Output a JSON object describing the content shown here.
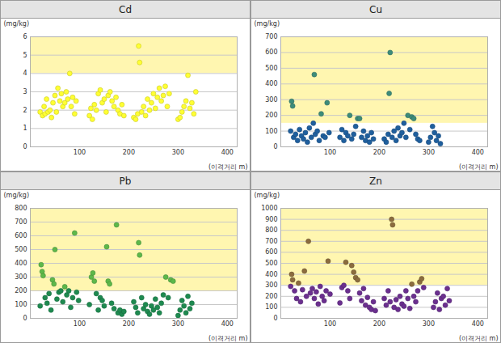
{
  "chart_data": [
    {
      "type": "scatter",
      "title": "Cd",
      "ylabel": "(mg/kg)",
      "xlabel": "(이격거리 m)",
      "xlim": [
        0,
        420
      ],
      "xticks": [
        100,
        200,
        300,
        400
      ],
      "ylim": [
        0,
        6
      ],
      "yticks": [
        0,
        1,
        2,
        3,
        4,
        5,
        6
      ],
      "grid": true,
      "shaded_range": [
        4,
        6
      ],
      "color": "#ffff33",
      "x": [
        20,
        25,
        28,
        30,
        33,
        36,
        40,
        43,
        46,
        50,
        53,
        56,
        60,
        63,
        66,
        70,
        73,
        76,
        80,
        83,
        86,
        90,
        93,
        120,
        123,
        126,
        130,
        134,
        138,
        142,
        146,
        150,
        154,
        158,
        162,
        166,
        170,
        174,
        178,
        182,
        186,
        190,
        210,
        214,
        218,
        220,
        222,
        226,
        230,
        234,
        238,
        242,
        246,
        250,
        254,
        258,
        262,
        266,
        270,
        274,
        278,
        282,
        300,
        304,
        308,
        312,
        316,
        320,
        324,
        328,
        332,
        336
      ],
      "values": [
        1.9,
        1.7,
        2.2,
        1.8,
        2.6,
        1.9,
        2.0,
        1.6,
        2.4,
        2.8,
        1.9,
        3.2,
        2.5,
        2.9,
        2.2,
        2.4,
        3.0,
        2.6,
        4.0,
        2.2,
        2.7,
        1.8,
        2.5,
        1.7,
        2.1,
        1.5,
        2.3,
        2.0,
        2.9,
        3.1,
        2.4,
        2.6,
        1.9,
        2.8,
        3.0,
        2.5,
        2.2,
        2.7,
        2.0,
        1.8,
        2.3,
        1.7,
        1.6,
        1.5,
        1.8,
        5.5,
        4.6,
        1.9,
        2.2,
        1.7,
        2.6,
        2.0,
        2.4,
        2.9,
        2.1,
        2.7,
        3.2,
        2.5,
        2.8,
        3.3,
        2.2,
        2.9,
        1.5,
        1.6,
        1.9,
        2.2,
        2.5,
        3.9,
        2.1,
        2.4,
        1.8,
        3.0
      ]
    },
    {
      "type": "scatter",
      "title": "Cu",
      "ylabel": "(mg/kg)",
      "xlabel": "(이격거리 m)",
      "xlim": [
        0,
        420
      ],
      "xticks": [
        100,
        200,
        300,
        400
      ],
      "ylim": [
        0,
        700
      ],
      "yticks": [
        0,
        100,
        200,
        300,
        400,
        500,
        600,
        700
      ],
      "grid": true,
      "shaded_range": [
        150,
        700
      ],
      "x": [
        20,
        22,
        24,
        26,
        30,
        34,
        38,
        42,
        46,
        50,
        54,
        58,
        62,
        66,
        68,
        70,
        74,
        78,
        82,
        86,
        90,
        94,
        98,
        120,
        124,
        128,
        132,
        136,
        140,
        144,
        148,
        152,
        156,
        160,
        164,
        168,
        172,
        176,
        180,
        184,
        188,
        210,
        214,
        218,
        220,
        222,
        226,
        230,
        234,
        238,
        242,
        246,
        250,
        254,
        258,
        262,
        266,
        270,
        274,
        278,
        282,
        300,
        304,
        308,
        312,
        316,
        320,
        324
      ],
      "values": [
        100,
        290,
        260,
        60,
        80,
        40,
        110,
        70,
        50,
        90,
        30,
        120,
        60,
        150,
        460,
        80,
        100,
        40,
        210,
        70,
        60,
        280,
        90,
        60,
        110,
        40,
        90,
        70,
        200,
        50,
        80,
        130,
        180,
        180,
        60,
        100,
        40,
        70,
        30,
        90,
        50,
        50,
        30,
        80,
        340,
        600,
        60,
        100,
        40,
        120,
        70,
        90,
        150,
        60,
        200,
        110,
        190,
        180,
        80,
        50,
        40,
        30,
        60,
        130,
        90,
        40,
        70,
        20
      ],
      "colors": [
        "#1f5f9e",
        "#3d8c7a",
        "#3d8c7a",
        "#1f5f9e",
        "#1f5f9e",
        "#1f5f9e",
        "#1f5f9e",
        "#1f5f9e",
        "#1f5f9e",
        "#1f5f9e",
        "#1f5f9e",
        "#1f5f9e",
        "#1f5f9e",
        "#1f5f9e",
        "#3d8c7a",
        "#1f5f9e",
        "#1f5f9e",
        "#1f5f9e",
        "#3d8c7a",
        "#1f5f9e",
        "#1f5f9e",
        "#3d8c7a",
        "#1f5f9e",
        "#1f5f9e",
        "#1f5f9e",
        "#1f5f9e",
        "#1f5f9e",
        "#1f5f9e",
        "#3d8c7a",
        "#1f5f9e",
        "#1f5f9e",
        "#1f5f9e",
        "#3d8c7a",
        "#3d8c7a",
        "#1f5f9e",
        "#1f5f9e",
        "#1f5f9e",
        "#1f5f9e",
        "#1f5f9e",
        "#1f5f9e",
        "#1f5f9e",
        "#1f5f9e",
        "#1f5f9e",
        "#1f5f9e",
        "#3d8c7a",
        "#3d8c7a",
        "#1f5f9e",
        "#1f5f9e",
        "#1f5f9e",
        "#1f5f9e",
        "#1f5f9e",
        "#1f5f9e",
        "#1f5f9e",
        "#1f5f9e",
        "#3d8c7a",
        "#1f5f9e",
        "#3d8c7a",
        "#3d8c7a",
        "#1f5f9e",
        "#1f5f9e",
        "#1f5f9e",
        "#1f5f9e",
        "#1f5f9e",
        "#1f5f9e",
        "#1f5f9e",
        "#1f5f9e",
        "#1f5f9e",
        "#1f5f9e"
      ]
    },
    {
      "type": "scatter",
      "title": "Pb",
      "ylabel": "(mg/kg)",
      "xlabel": "(이격거리 m)",
      "xlim": [
        0,
        420
      ],
      "xticks": [
        100,
        200,
        300,
        400
      ],
      "ylim": [
        0,
        800
      ],
      "yticks": [
        0,
        100,
        200,
        300,
        400,
        500,
        600,
        700,
        800
      ],
      "grid": true,
      "shaded_range": [
        200,
        800
      ],
      "x": [
        20,
        22,
        24,
        26,
        30,
        34,
        38,
        42,
        45,
        48,
        50,
        54,
        58,
        62,
        66,
        70,
        74,
        78,
        82,
        86,
        90,
        94,
        98,
        120,
        124,
        127,
        130,
        134,
        138,
        142,
        146,
        150,
        155,
        158,
        161,
        165,
        170,
        175,
        178,
        182,
        186,
        190,
        210,
        214,
        218,
        220,
        222,
        226,
        230,
        234,
        238,
        242,
        246,
        250,
        254,
        258,
        262,
        266,
        270,
        275,
        280,
        285,
        290,
        300,
        304,
        308,
        312,
        316,
        320,
        324,
        328
      ],
      "values": [
        90,
        390,
        340,
        310,
        150,
        110,
        180,
        60,
        280,
        250,
        500,
        140,
        190,
        200,
        120,
        230,
        170,
        200,
        80,
        150,
        620,
        190,
        130,
        100,
        300,
        330,
        270,
        180,
        60,
        150,
        130,
        90,
        520,
        270,
        250,
        110,
        70,
        680,
        40,
        60,
        30,
        50,
        120,
        80,
        40,
        550,
        460,
        150,
        70,
        100,
        50,
        30,
        90,
        60,
        140,
        80,
        40,
        110,
        170,
        300,
        150,
        280,
        270,
        20,
        60,
        130,
        90,
        40,
        160,
        70,
        110
      ],
      "colors": [
        "#1e8a50",
        "#5db84a",
        "#5db84a",
        "#5db84a",
        "#1e8a50",
        "#1e8a50",
        "#1e8a50",
        "#1e8a50",
        "#5db84a",
        "#5db84a",
        "#5db84a",
        "#1e8a50",
        "#1e8a50",
        "#1e8a50",
        "#1e8a50",
        "#5db84a",
        "#1e8a50",
        "#1e8a50",
        "#1e8a50",
        "#1e8a50",
        "#5db84a",
        "#1e8a50",
        "#1e8a50",
        "#1e8a50",
        "#5db84a",
        "#5db84a",
        "#5db84a",
        "#1e8a50",
        "#1e8a50",
        "#1e8a50",
        "#1e8a50",
        "#1e8a50",
        "#5db84a",
        "#5db84a",
        "#5db84a",
        "#1e8a50",
        "#1e8a50",
        "#5db84a",
        "#1e8a50",
        "#1e8a50",
        "#1e8a50",
        "#1e8a50",
        "#1e8a50",
        "#1e8a50",
        "#1e8a50",
        "#5db84a",
        "#5db84a",
        "#1e8a50",
        "#1e8a50",
        "#1e8a50",
        "#1e8a50",
        "#1e8a50",
        "#1e8a50",
        "#1e8a50",
        "#1e8a50",
        "#1e8a50",
        "#1e8a50",
        "#1e8a50",
        "#1e8a50",
        "#5db84a",
        "#1e8a50",
        "#5db84a",
        "#5db84a",
        "#1e8a50",
        "#1e8a50",
        "#1e8a50",
        "#1e8a50",
        "#1e8a50",
        "#1e8a50",
        "#1e8a50",
        "#1e8a50"
      ]
    },
    {
      "type": "scatter",
      "title": "Zn",
      "ylabel": "(mg/kg)",
      "xlabel": "(이격거리 m)",
      "xlim": [
        0,
        420
      ],
      "xticks": [
        100,
        200,
        300,
        400
      ],
      "ylim": [
        0,
        1000
      ],
      "yticks": [
        0,
        100,
        200,
        300,
        400,
        500,
        600,
        700,
        800,
        900,
        1000
      ],
      "grid": true,
      "shaded_range": [
        300,
        1000
      ],
      "x": [
        20,
        22,
        24,
        28,
        32,
        36,
        40,
        44,
        48,
        52,
        56,
        60,
        64,
        68,
        72,
        76,
        80,
        84,
        88,
        92,
        96,
        100,
        120,
        124,
        128,
        132,
        136,
        140,
        144,
        148,
        152,
        156,
        160,
        164,
        168,
        172,
        176,
        180,
        184,
        188,
        192,
        210,
        214,
        218,
        222,
        225,
        227,
        230,
        234,
        238,
        242,
        246,
        250,
        254,
        258,
        262,
        266,
        270,
        274,
        278,
        282,
        286,
        290,
        310,
        314,
        318,
        322,
        326,
        330,
        334,
        338,
        342
      ],
      "values": [
        290,
        400,
        350,
        250,
        180,
        320,
        150,
        260,
        430,
        200,
        700,
        230,
        270,
        180,
        240,
        130,
        290,
        200,
        160,
        250,
        520,
        220,
        140,
        280,
        300,
        510,
        250,
        180,
        480,
        420,
        370,
        350,
        230,
        160,
        270,
        120,
        190,
        100,
        80,
        150,
        70,
        180,
        120,
        250,
        150,
        900,
        850,
        100,
        170,
        80,
        200,
        130,
        110,
        250,
        180,
        90,
        310,
        200,
        150,
        250,
        330,
        360,
        280,
        100,
        150,
        230,
        80,
        180,
        200,
        120,
        270,
        160
      ],
      "colors": [
        "#6b2f8f",
        "#8b6c3e",
        "#8b6c3e",
        "#6b2f8f",
        "#6b2f8f",
        "#8b6c3e",
        "#6b2f8f",
        "#6b2f8f",
        "#8b6c3e",
        "#6b2f8f",
        "#8b6c3e",
        "#6b2f8f",
        "#6b2f8f",
        "#6b2f8f",
        "#6b2f8f",
        "#6b2f8f",
        "#6b2f8f",
        "#6b2f8f",
        "#6b2f8f",
        "#6b2f8f",
        "#8b6c3e",
        "#6b2f8f",
        "#6b2f8f",
        "#6b2f8f",
        "#6b2f8f",
        "#8b6c3e",
        "#6b2f8f",
        "#6b2f8f",
        "#8b6c3e",
        "#8b6c3e",
        "#8b6c3e",
        "#8b6c3e",
        "#6b2f8f",
        "#6b2f8f",
        "#6b2f8f",
        "#6b2f8f",
        "#6b2f8f",
        "#6b2f8f",
        "#6b2f8f",
        "#6b2f8f",
        "#6b2f8f",
        "#6b2f8f",
        "#6b2f8f",
        "#6b2f8f",
        "#6b2f8f",
        "#8b6c3e",
        "#8b6c3e",
        "#6b2f8f",
        "#6b2f8f",
        "#6b2f8f",
        "#6b2f8f",
        "#6b2f8f",
        "#6b2f8f",
        "#6b2f8f",
        "#6b2f8f",
        "#6b2f8f",
        "#8b6c3e",
        "#6b2f8f",
        "#6b2f8f",
        "#6b2f8f",
        "#8b6c3e",
        "#8b6c3e",
        "#6b2f8f",
        "#6b2f8f",
        "#6b2f8f",
        "#6b2f8f",
        "#6b2f8f",
        "#6b2f8f",
        "#6b2f8f",
        "#6b2f8f",
        "#6b2f8f",
        "#6b2f8f"
      ]
    }
  ]
}
